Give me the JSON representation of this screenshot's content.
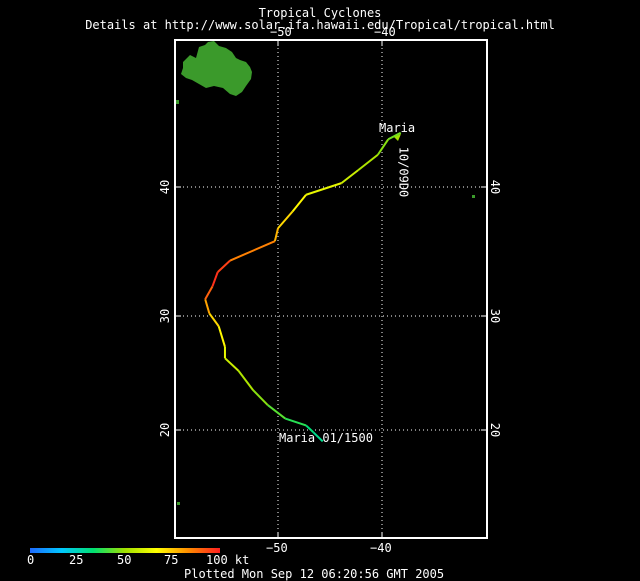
{
  "header": {
    "title": "Tropical Cyclones",
    "subtitle": "Details at http://www.solar.ifa.hawaii.edu/Tropical/tropical.html"
  },
  "axes": {
    "lon_ticks": [
      "−50",
      "−40"
    ],
    "lat_ticks": [
      "20",
      "30",
      "40"
    ]
  },
  "storm": {
    "name": "Maria",
    "start_label": "Maria  01/1500",
    "end_label": "10/09D0",
    "track": [
      {
        "lon": -45.7,
        "lat": 19.0,
        "kt": 30
      },
      {
        "lon": -46.6,
        "lat": 19.8,
        "kt": 30
      },
      {
        "lon": -47.3,
        "lat": 20.4,
        "kt": 35
      },
      {
        "lon": -49.3,
        "lat": 21.0,
        "kt": 40
      },
      {
        "lon": -51.0,
        "lat": 22.2,
        "kt": 45
      },
      {
        "lon": -52.4,
        "lat": 23.5,
        "kt": 50
      },
      {
        "lon": -53.8,
        "lat": 25.2,
        "kt": 55
      },
      {
        "lon": -55.1,
        "lat": 26.3,
        "kt": 60
      },
      {
        "lon": -55.1,
        "lat": 27.3,
        "kt": 65
      },
      {
        "lon": -55.7,
        "lat": 29.1,
        "kt": 70
      },
      {
        "lon": -56.6,
        "lat": 30.2,
        "kt": 75
      },
      {
        "lon": -57.0,
        "lat": 31.3,
        "kt": 85
      },
      {
        "lon": -56.3,
        "lat": 32.3,
        "kt": 95
      },
      {
        "lon": -55.8,
        "lat": 33.4,
        "kt": 100
      },
      {
        "lon": -54.6,
        "lat": 34.3,
        "kt": 90
      },
      {
        "lon": -50.3,
        "lat": 35.8,
        "kt": 80
      },
      {
        "lon": -50.0,
        "lat": 36.8,
        "kt": 75
      },
      {
        "lon": -48.6,
        "lat": 38.1,
        "kt": 70
      },
      {
        "lon": -47.3,
        "lat": 39.4,
        "kt": 65
      },
      {
        "lon": -43.9,
        "lat": 40.3,
        "kt": 60
      },
      {
        "lon": -42.3,
        "lat": 41.3,
        "kt": 55
      },
      {
        "lon": -40.4,
        "lat": 42.5,
        "kt": 50
      },
      {
        "lon": -39.4,
        "lat": 43.7,
        "kt": 45
      },
      {
        "lon": -38.2,
        "lat": 44.2,
        "kt": 45
      }
    ]
  },
  "colorbar": {
    "ticks": [
      "0",
      "25",
      "50",
      "75",
      "100 kt"
    ],
    "colors": [
      "#1e6bff",
      "#00c8ff",
      "#00e070",
      "#a0e000",
      "#ffff00",
      "#ff8c00",
      "#ff2020"
    ]
  },
  "land_color": "#3b9a2b",
  "grid_color": "#ffffff",
  "footer": {
    "plotted": "Plotted Mon Sep 12 06:20:56 GMT 2005"
  }
}
